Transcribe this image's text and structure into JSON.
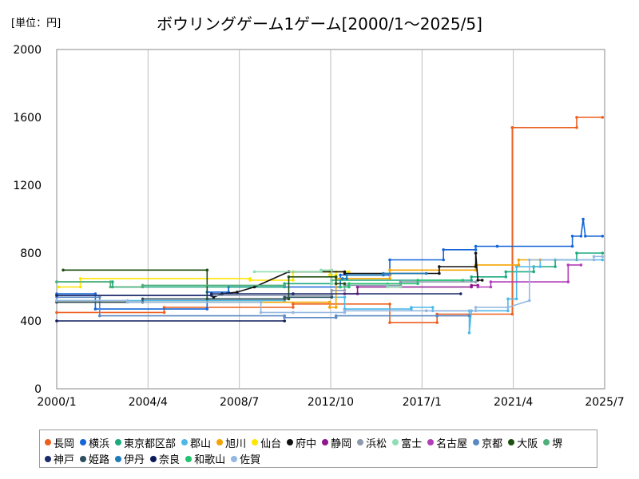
{
  "unit_label": "[単位：円]",
  "chart_data": {
    "type": "line",
    "title": "ボウリングゲーム1ゲーム[2000/1〜2025/5]",
    "xlabel": "",
    "ylabel": "",
    "x_range": [
      "2000-01",
      "2025-07"
    ],
    "x_ticks": [
      {
        "label": "2000/1",
        "value": 2000.0
      },
      {
        "label": "2004/4",
        "value": 2004.25
      },
      {
        "label": "2008/7",
        "value": 2008.5
      },
      {
        "label": "2012/10",
        "value": 2012.75
      },
      {
        "label": "2017/1",
        "value": 2017.0
      },
      {
        "label": "2021/4",
        "value": 2021.25
      },
      {
        "label": "2025/7",
        "value": 2025.5
      }
    ],
    "ylim": [
      0,
      2000
    ],
    "y_ticks": [
      0,
      400,
      800,
      1200,
      1600,
      2000
    ],
    "grid": "vertical",
    "legend_position": "bottom",
    "series": [
      {
        "name": "長岡",
        "color": "#ED5F1E",
        "points": [
          [
            2000.0,
            450
          ],
          [
            2005.0,
            450
          ],
          [
            2005.0,
            480
          ],
          [
            2011.0,
            480
          ],
          [
            2011.0,
            500
          ],
          [
            2015.5,
            500
          ],
          [
            2015.5,
            390
          ],
          [
            2017.7,
            390
          ],
          [
            2017.7,
            440
          ],
          [
            2021.2,
            440
          ],
          [
            2021.2,
            1540
          ],
          [
            2024.2,
            1540
          ],
          [
            2024.2,
            1600
          ],
          [
            2025.4,
            1600
          ]
        ]
      },
      {
        "name": "横浜",
        "color": "#1565D8",
        "points": [
          [
            2000.0,
            560
          ],
          [
            2001.8,
            560
          ],
          [
            2001.8,
            470
          ],
          [
            2007.0,
            470
          ],
          [
            2007.0,
            570
          ],
          [
            2008.0,
            570
          ],
          [
            2008.0,
            600
          ],
          [
            2013.2,
            600
          ],
          [
            2013.2,
            670
          ],
          [
            2015.5,
            670
          ],
          [
            2015.5,
            760
          ],
          [
            2018.0,
            760
          ],
          [
            2018.0,
            820
          ],
          [
            2019.5,
            820
          ],
          [
            2019.5,
            840
          ],
          [
            2020.5,
            840
          ],
          [
            2020.5,
            840
          ],
          [
            2024.0,
            840
          ],
          [
            2024.0,
            900
          ],
          [
            2024.4,
            900
          ],
          [
            2024.5,
            1000
          ],
          [
            2024.6,
            900
          ],
          [
            2025.4,
            900
          ]
        ]
      },
      {
        "name": "東京都区部",
        "color": "#1BAA7E",
        "points": [
          [
            2000.0,
            630
          ],
          [
            2002.6,
            630
          ],
          [
            2002.6,
            600
          ],
          [
            2010.6,
            600
          ],
          [
            2010.6,
            620
          ],
          [
            2012.8,
            620
          ],
          [
            2012.8,
            640
          ],
          [
            2019.3,
            640
          ],
          [
            2019.3,
            660
          ],
          [
            2020.9,
            660
          ],
          [
            2020.9,
            690
          ],
          [
            2022.2,
            690
          ],
          [
            2022.2,
            720
          ],
          [
            2023.2,
            720
          ],
          [
            2023.2,
            760
          ],
          [
            2024.2,
            760
          ],
          [
            2024.2,
            800
          ],
          [
            2025.4,
            800
          ]
        ]
      },
      {
        "name": "郡山",
        "color": "#4DB8E8",
        "points": [
          [
            2000.0,
            520
          ],
          [
            2010.6,
            520
          ],
          [
            2010.6,
            540
          ],
          [
            2013.4,
            540
          ],
          [
            2013.4,
            470
          ],
          [
            2016.5,
            470
          ],
          [
            2016.5,
            480
          ],
          [
            2017.5,
            480
          ],
          [
            2017.5,
            460
          ],
          [
            2019.2,
            460
          ],
          [
            2019.2,
            330
          ],
          [
            2019.3,
            460
          ],
          [
            2021.0,
            460
          ],
          [
            2021.0,
            530
          ],
          [
            2021.4,
            530
          ],
          [
            2021.4,
            720
          ],
          [
            2022.5,
            720
          ],
          [
            2022.5,
            760
          ],
          [
            2025.4,
            760
          ]
        ]
      },
      {
        "name": "旭川",
        "color": "#F5A300",
        "points": [
          [
            2000.0,
            510
          ],
          [
            2012.7,
            510
          ],
          [
            2012.7,
            480
          ],
          [
            2013.0,
            480
          ],
          [
            2013.0,
            650
          ],
          [
            2015.5,
            650
          ],
          [
            2015.5,
            700
          ],
          [
            2019.5,
            700
          ],
          [
            2019.5,
            730
          ],
          [
            2021.5,
            730
          ],
          [
            2021.5,
            760
          ],
          [
            2022.5,
            760
          ]
        ]
      },
      {
        "name": "仙台",
        "color": "#FFE600",
        "points": [
          [
            2000.1,
            600
          ],
          [
            2001.1,
            600
          ],
          [
            2001.1,
            650
          ],
          [
            2009.0,
            650
          ],
          [
            2009.0,
            640
          ],
          [
            2011.0,
            640
          ],
          [
            2011.0,
            690
          ],
          [
            2012.7,
            690
          ],
          [
            2012.7,
            670
          ],
          [
            2013.0,
            670
          ],
          [
            2013.0,
            690
          ],
          [
            2013.6,
            690
          ]
        ]
      },
      {
        "name": "府中",
        "color": "#111111",
        "points": [
          [
            2007.3,
            540
          ],
          [
            2007.7,
            560
          ],
          [
            2008.4,
            570
          ],
          [
            2009.2,
            600
          ],
          [
            2010.8,
            690
          ],
          [
            2013.4,
            690
          ],
          [
            2013.4,
            680
          ],
          [
            2017.8,
            680
          ],
          [
            2017.8,
            720
          ],
          [
            2019.5,
            720
          ],
          [
            2019.5,
            800
          ],
          [
            2019.6,
            640
          ],
          [
            2019.8,
            640
          ]
        ]
      },
      {
        "name": "静岡",
        "color": "#8E168E",
        "points": [
          [
            2013.4,
            560
          ],
          [
            2014.0,
            560
          ],
          [
            2014.0,
            600
          ],
          [
            2019.3,
            600
          ],
          [
            2019.3,
            610
          ],
          [
            2019.6,
            610
          ]
        ]
      },
      {
        "name": "浜松",
        "color": "#8C9AAE",
        "points": [
          [
            2000.0,
            550
          ],
          [
            2012.8,
            550
          ],
          [
            2012.8,
            580
          ],
          [
            2013.4,
            580
          ],
          [
            2013.4,
            610
          ],
          [
            2016.0,
            610
          ],
          [
            2016.0,
            630
          ],
          [
            2019.5,
            630
          ]
        ]
      },
      {
        "name": "富士",
        "color": "#8FDDB4",
        "points": [
          [
            2009.2,
            690
          ],
          [
            2012.3,
            690
          ],
          [
            2012.3,
            700
          ],
          [
            2012.8,
            700
          ],
          [
            2012.8,
            620
          ],
          [
            2015.4,
            620
          ],
          [
            2015.4,
            600
          ],
          [
            2016.0,
            600
          ]
        ]
      },
      {
        "name": "名古屋",
        "color": "#B33FB8",
        "points": [
          [
            2019.6,
            600
          ],
          [
            2020.2,
            600
          ],
          [
            2020.2,
            630
          ],
          [
            2023.8,
            630
          ],
          [
            2023.8,
            730
          ],
          [
            2024.4,
            730
          ]
        ]
      },
      {
        "name": "京都",
        "color": "#5A88C4",
        "points": [
          [
            2000.0,
            540
          ],
          [
            2002.0,
            540
          ],
          [
            2002.0,
            430
          ],
          [
            2010.6,
            430
          ],
          [
            2010.6,
            420
          ],
          [
            2013.0,
            420
          ],
          [
            2013.0,
            430
          ],
          [
            2017.7,
            430
          ],
          [
            2017.7,
            430
          ],
          [
            2019.2,
            430
          ]
        ]
      },
      {
        "name": "大阪",
        "color": "#1D4F12",
        "points": [
          [
            2000.3,
            700
          ],
          [
            2007.0,
            700
          ],
          [
            2007.0,
            530
          ],
          [
            2010.8,
            530
          ],
          [
            2010.8,
            660
          ],
          [
            2013.0,
            660
          ],
          [
            2013.0,
            620
          ],
          [
            2013.4,
            620
          ]
        ]
      },
      {
        "name": "堺",
        "color": "#4FAF7A",
        "points": [
          [
            2000.0,
            630
          ],
          [
            2002.5,
            630
          ],
          [
            2002.5,
            600
          ],
          [
            2004.0,
            600
          ],
          [
            2004.0,
            610
          ],
          [
            2010.6,
            610
          ]
        ]
      },
      {
        "name": "神戸",
        "color": "#1B2A6B",
        "points": [
          [
            2000.0,
            550
          ],
          [
            2007.2,
            550
          ],
          [
            2007.2,
            560
          ],
          [
            2011.0,
            560
          ],
          [
            2011.0,
            560
          ],
          [
            2018.8,
            560
          ]
        ]
      },
      {
        "name": "姫路",
        "color": "#2D4F60",
        "points": [
          [
            2000.0,
            510
          ],
          [
            2004.0,
            510
          ],
          [
            2004.0,
            530
          ],
          [
            2010.6,
            530
          ],
          [
            2010.6,
            540
          ],
          [
            2012.8,
            540
          ]
        ]
      },
      {
        "name": "伊丹",
        "color": "#1F7BB8",
        "points": [
          [
            2013.3,
            650
          ],
          [
            2013.5,
            650
          ],
          [
            2013.5,
            670
          ],
          [
            2015.2,
            670
          ],
          [
            2015.2,
            680
          ],
          [
            2017.2,
            680
          ]
        ]
      },
      {
        "name": "奈良",
        "color": "#0B1A5A",
        "points": [
          [
            2000.0,
            400
          ],
          [
            2010.6,
            400
          ]
        ]
      },
      {
        "name": "和歌山",
        "color": "#22C26E",
        "points": [
          [
            2013.2,
            600
          ],
          [
            2013.6,
            600
          ],
          [
            2013.6,
            620
          ],
          [
            2016.8,
            620
          ],
          [
            2016.8,
            640
          ],
          [
            2018.9,
            640
          ]
        ]
      },
      {
        "name": "佐賀",
        "color": "#93B8E2",
        "points": [
          [
            2000.0,
            520
          ],
          [
            2003.3,
            520
          ],
          [
            2003.3,
            510
          ],
          [
            2009.5,
            510
          ],
          [
            2009.5,
            450
          ],
          [
            2011.0,
            450
          ],
          [
            2011.0,
            450
          ],
          [
            2013.4,
            450
          ],
          [
            2013.4,
            460
          ],
          [
            2017.2,
            460
          ],
          [
            2017.2,
            460
          ],
          [
            2019.5,
            460
          ],
          [
            2019.5,
            480
          ],
          [
            2021.0,
            480
          ],
          [
            2022.0,
            520
          ],
          [
            2022.0,
            760
          ],
          [
            2025.0,
            760
          ],
          [
            2025.0,
            780
          ],
          [
            2025.4,
            780
          ]
        ]
      }
    ]
  }
}
